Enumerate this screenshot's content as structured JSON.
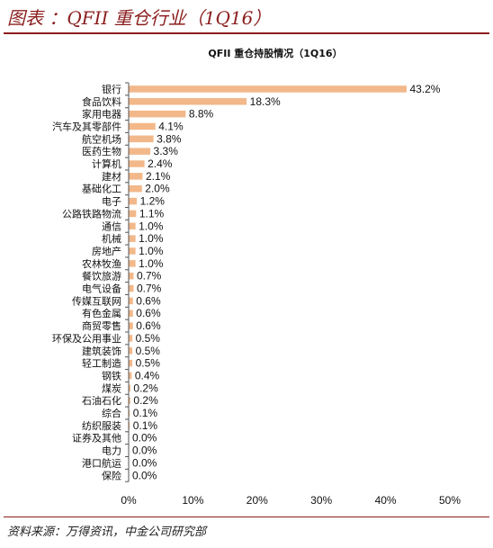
{
  "header": {
    "title": "图表  ：QFII 重仓行业（1Q16）"
  },
  "footer": {
    "source": "资料来源：万得资讯，中金公司研究部"
  },
  "chart_data": {
    "type": "bar",
    "orientation": "horizontal",
    "title": "QFII 重仓持股情况（1Q16）",
    "xlabel": "",
    "ylabel": "",
    "xlim": [
      0,
      50
    ],
    "x_ticks": [
      "0%",
      "10%",
      "20%",
      "30%",
      "40%",
      "50%"
    ],
    "grid": false,
    "bar_color": "#f2b88a",
    "categories": [
      "银行",
      "食品饮料",
      "家用电器",
      "汽车及其零部件",
      "航空机场",
      "医药生物",
      "计算机",
      "建材",
      "基础化工",
      "电子",
      "公路铁路物流",
      "通信",
      "机械",
      "房地产",
      "农林牧渔",
      "餐饮旅游",
      "电气设备",
      "传媒互联网",
      "有色金属",
      "商贸零售",
      "环保及公用事业",
      "建筑装饰",
      "轻工制造",
      "钢铁",
      "煤炭",
      "石油石化",
      "综合",
      "纺织服装",
      "证券及其他",
      "电力",
      "港口航运",
      "保险"
    ],
    "values": [
      43.2,
      18.3,
      8.8,
      4.1,
      3.8,
      3.3,
      2.4,
      2.1,
      2.0,
      1.2,
      1.1,
      1.0,
      1.0,
      1.0,
      1.0,
      0.7,
      0.7,
      0.6,
      0.6,
      0.6,
      0.5,
      0.5,
      0.5,
      0.4,
      0.2,
      0.2,
      0.1,
      0.1,
      0.0,
      0.0,
      0.0,
      0.0
    ],
    "value_labels": [
      "43.2%",
      "18.3%",
      "8.8%",
      "4.1%",
      "3.8%",
      "3.3%",
      "2.4%",
      "2.1%",
      "2.0%",
      "1.2%",
      "1.1%",
      "1.0%",
      "1.0%",
      "1.0%",
      "1.0%",
      "0.7%",
      "0.7%",
      "0.6%",
      "0.6%",
      "0.6%",
      "0.5%",
      "0.5%",
      "0.5%",
      "0.4%",
      "0.2%",
      "0.2%",
      "0.1%",
      "0.1%",
      "0.0%",
      "0.0%",
      "0.0%",
      "0.0%"
    ]
  }
}
